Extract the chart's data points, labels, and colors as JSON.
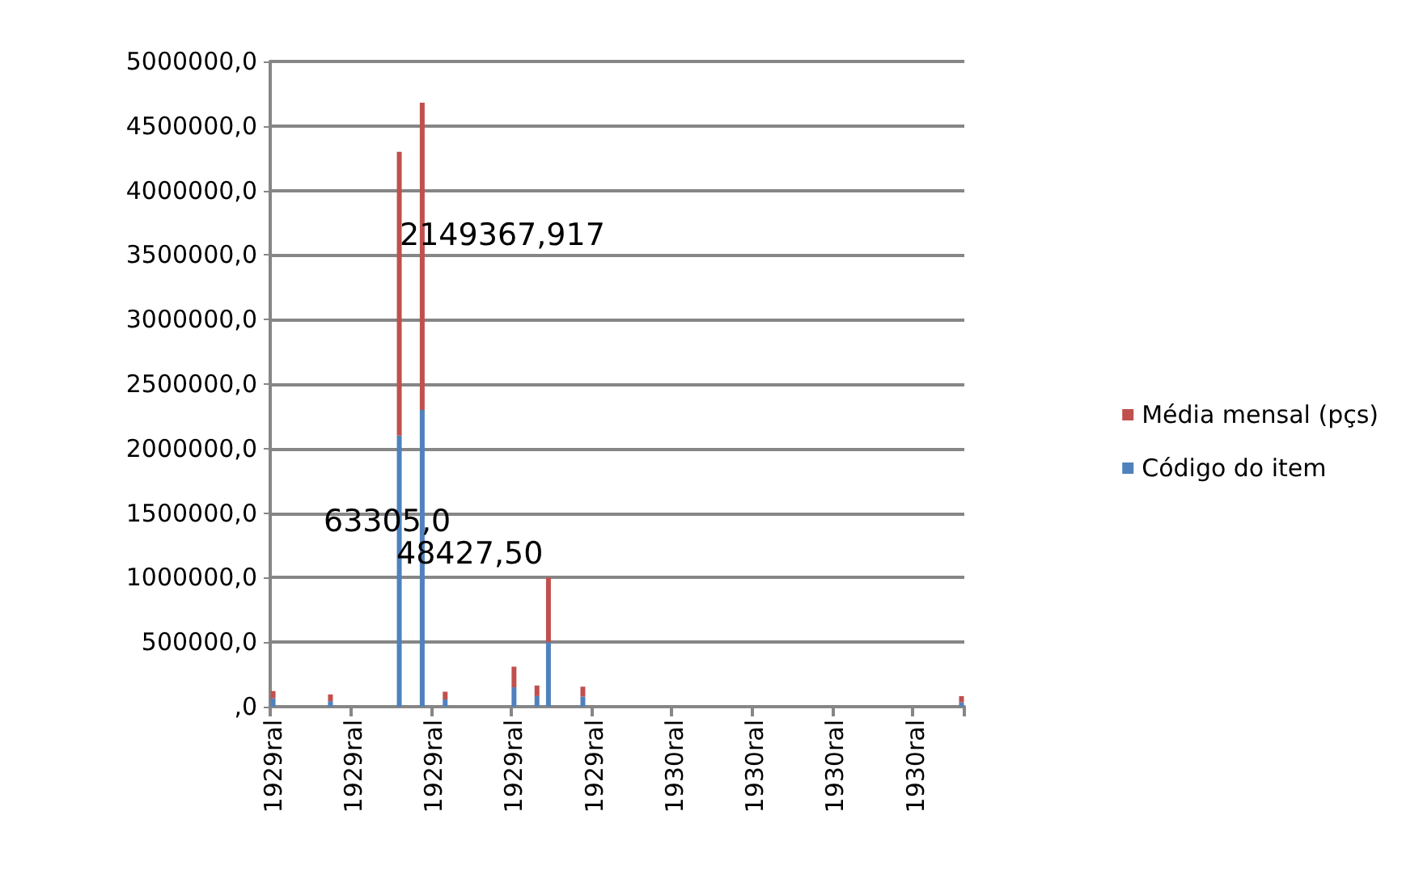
{
  "chart_data": {
    "type": "bar",
    "stacked": true,
    "categories": [
      "1929ral",
      null,
      null,
      null,
      null,
      null,
      null,
      null,
      null,
      null,
      null,
      null,
      null,
      null,
      "1929ral",
      null,
      null,
      null,
      null,
      null,
      null,
      null,
      null,
      null,
      null,
      null,
      null,
      null,
      "1929ral",
      null,
      null,
      null,
      null,
      null,
      null,
      null,
      null,
      null,
      null,
      null,
      null,
      null,
      "1929ral",
      null,
      null,
      null,
      null,
      null,
      null,
      null,
      null,
      null,
      null,
      null,
      null,
      null,
      "1929ral",
      null,
      null,
      null,
      null,
      null,
      null,
      null,
      null,
      null,
      null,
      null,
      null,
      null,
      "1930ral",
      null,
      null,
      null,
      null,
      null,
      null,
      null,
      null,
      null,
      null,
      null,
      null,
      null,
      "1930ral",
      null,
      null,
      null,
      null,
      null,
      null,
      null,
      null,
      null,
      null,
      null,
      null,
      null,
      "1930ral",
      null,
      null,
      null,
      null,
      null,
      null,
      null,
      null,
      null,
      null,
      null,
      null,
      null,
      "1930ral",
      null,
      null,
      null,
      null,
      null,
      null,
      null,
      null
    ],
    "series": [
      {
        "name": "Código do item",
        "color": "#4f81bd",
        "values": [
          65000,
          null,
          null,
          null,
          null,
          null,
          null,
          null,
          null,
          null,
          43000,
          null,
          null,
          null,
          null,
          null,
          null,
          null,
          null,
          null,
          null,
          null,
          2100000,
          null,
          null,
          null,
          2300000,
          null,
          null,
          null,
          56000,
          null,
          null,
          null,
          null,
          null,
          null,
          null,
          null,
          null,
          null,
          null,
          150000,
          null,
          null,
          null,
          82000,
          null,
          500000,
          null,
          null,
          null,
          null,
          null,
          78000,
          null,
          null,
          null,
          null,
          null,
          null,
          null,
          null,
          null,
          null,
          null,
          null,
          null,
          null,
          null,
          null,
          null,
          null,
          null,
          null,
          null,
          null,
          null,
          null,
          null,
          null,
          null,
          null,
          null,
          null,
          null,
          null,
          null,
          null,
          null,
          null,
          null,
          null,
          null,
          null,
          null,
          null,
          null,
          null,
          null,
          null,
          null,
          null,
          null,
          null,
          null,
          null,
          null,
          null,
          null,
          null,
          null,
          null,
          null,
          null,
          null,
          null,
          null,
          null,
          null,
          34000
        ]
      },
      {
        "name": "Média mensal (pçs)",
        "color": "#c0504d",
        "values": [
          56000,
          null,
          null,
          null,
          null,
          null,
          null,
          null,
          null,
          null,
          52000,
          null,
          null,
          null,
          null,
          null,
          null,
          null,
          null,
          null,
          null,
          null,
          2200000,
          null,
          null,
          null,
          2380000,
          null,
          null,
          null,
          60000,
          null,
          null,
          null,
          null,
          null,
          null,
          null,
          null,
          null,
          null,
          null,
          160000,
          null,
          null,
          null,
          82000,
          null,
          500000,
          null,
          null,
          null,
          null,
          null,
          77000,
          null,
          null,
          null,
          null,
          null,
          null,
          null,
          null,
          null,
          null,
          null,
          null,
          null,
          null,
          null,
          null,
          null,
          null,
          null,
          null,
          null,
          null,
          null,
          null,
          null,
          null,
          null,
          null,
          null,
          null,
          null,
          null,
          null,
          null,
          null,
          null,
          null,
          null,
          null,
          null,
          null,
          null,
          null,
          null,
          null,
          null,
          null,
          null,
          null,
          null,
          null,
          null,
          null,
          null,
          null,
          null,
          null,
          null,
          null,
          null,
          null,
          null,
          null,
          null,
          null,
          48000
        ]
      }
    ],
    "ylim": [
      0,
      5000000
    ],
    "yticks": [
      {
        "value": 0,
        "label": ",0"
      },
      {
        "value": 500000,
        "label": "500000,0"
      },
      {
        "value": 1000000,
        "label": "1000000,0"
      },
      {
        "value": 1500000,
        "label": "1500000,0"
      },
      {
        "value": 2000000,
        "label": "2000000,0"
      },
      {
        "value": 2500000,
        "label": "2500000,0"
      },
      {
        "value": 3000000,
        "label": "3000000,0"
      },
      {
        "value": 3500000,
        "label": "3500000,0"
      },
      {
        "value": 4000000,
        "label": "4000000,0"
      },
      {
        "value": 4500000,
        "label": "4500000,0"
      },
      {
        "value": 5000000,
        "label": "5000000,0"
      }
    ],
    "grid": "y",
    "legend": "right",
    "annotations": [
      "2149367,917",
      "63305,0",
      "48427,50"
    ]
  }
}
